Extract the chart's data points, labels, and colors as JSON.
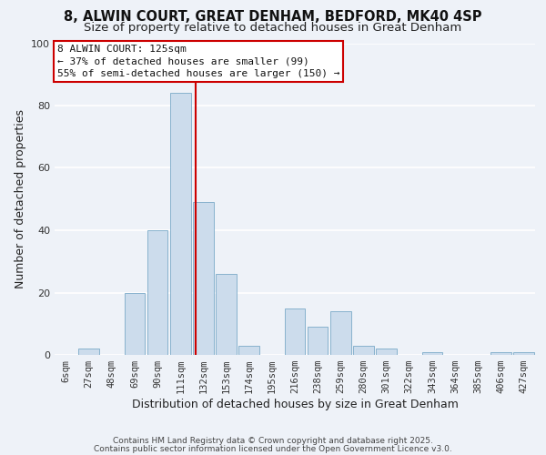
{
  "title_line1": "8, ALWIN COURT, GREAT DENHAM, BEDFORD, MK40 4SP",
  "title_line2": "Size of property relative to detached houses in Great Denham",
  "bar_labels": [
    "6sqm",
    "27sqm",
    "48sqm",
    "69sqm",
    "90sqm",
    "111sqm",
    "132sqm",
    "153sqm",
    "174sqm",
    "195sqm",
    "216sqm",
    "238sqm",
    "259sqm",
    "280sqm",
    "301sqm",
    "322sqm",
    "343sqm",
    "364sqm",
    "385sqm",
    "406sqm",
    "427sqm"
  ],
  "bar_values": [
    0,
    2,
    0,
    20,
    40,
    84,
    49,
    26,
    3,
    0,
    15,
    9,
    14,
    3,
    2,
    0,
    1,
    0,
    0,
    1,
    1
  ],
  "bar_color": "#ccdcec",
  "bar_edge_color": "#7aaac8",
  "xlabel": "Distribution of detached houses by size in Great Denham",
  "ylabel": "Number of detached properties",
  "ylim": [
    0,
    100
  ],
  "yticks": [
    0,
    20,
    40,
    60,
    80,
    100
  ],
  "annotation_title": "8 ALWIN COURT: 125sqm",
  "annotation_line1": "← 37% of detached houses are smaller (99)",
  "annotation_line2": "55% of semi-detached houses are larger (150) →",
  "footer_line1": "Contains HM Land Registry data © Crown copyright and database right 2025.",
  "footer_line2": "Contains public sector information licensed under the Open Government Licence v3.0.",
  "background_color": "#eef2f8",
  "grid_color": "#ffffff",
  "title_fontsize": 10.5,
  "subtitle_fontsize": 9.5,
  "axis_label_fontsize": 9,
  "tick_fontsize": 7.5,
  "footer_fontsize": 6.5
}
